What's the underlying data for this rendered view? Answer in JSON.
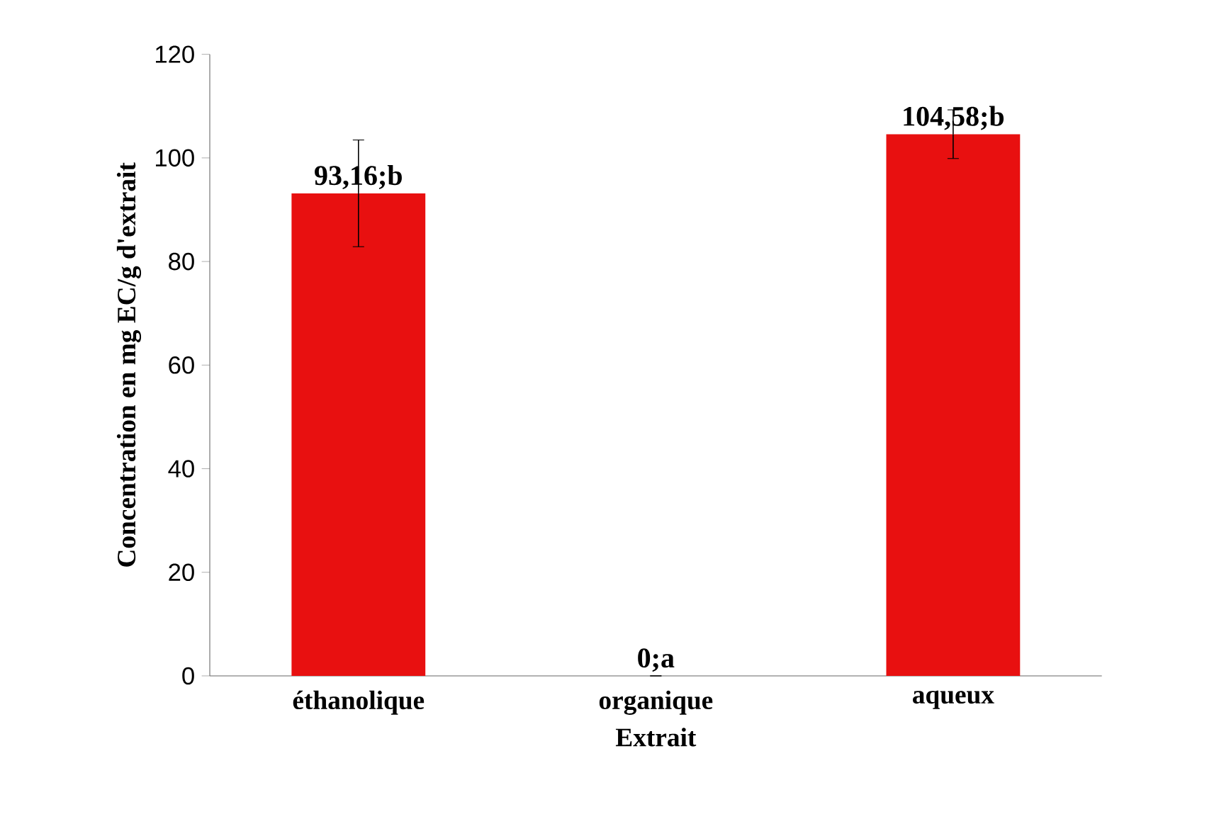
{
  "chart_data": {
    "type": "bar",
    "xlabel": "Extrait",
    "ylabel": "Concentration en mg EC/g d'extrait",
    "categories": [
      "éthanolique",
      "organique",
      "aqueux"
    ],
    "values": [
      93.16,
      0,
      104.58
    ],
    "errors": [
      10.3,
      null,
      4.7
    ],
    "value_labels": [
      "93,16;b",
      "0;a",
      "104,58;b"
    ],
    "color": "#e81010",
    "ylim": [
      0,
      120
    ],
    "yticks": [
      0,
      20,
      40,
      60,
      80,
      100,
      120
    ]
  }
}
